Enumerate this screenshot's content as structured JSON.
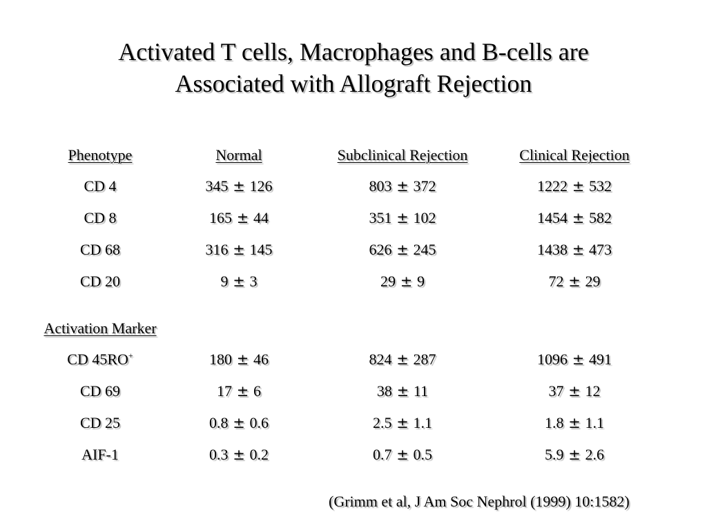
{
  "title": {
    "line1": "Activated T cells, Macrophages and B-cells are",
    "line2": "Associated with Allograft Rejection"
  },
  "table": {
    "headers": [
      "Phenotype",
      "Normal",
      "Subclinical Rejection",
      "Clinical Rejection"
    ],
    "phenotype_rows": [
      {
        "label": "CD 4",
        "normal": [
          "345",
          "126"
        ],
        "subclinical": [
          "803",
          "372"
        ],
        "clinical": [
          "1222",
          "532"
        ]
      },
      {
        "label": "CD 8",
        "normal": [
          "165",
          "44"
        ],
        "subclinical": [
          "351",
          "102"
        ],
        "clinical": [
          "1454",
          "582"
        ]
      },
      {
        "label": "CD 68",
        "normal": [
          "316",
          "145"
        ],
        "subclinical": [
          "626",
          "245"
        ],
        "clinical": [
          "1438",
          "473"
        ]
      },
      {
        "label": "CD 20",
        "normal": [
          "9",
          "3"
        ],
        "subclinical": [
          "29",
          "9"
        ],
        "clinical": [
          "72",
          "29"
        ]
      }
    ],
    "section2_header": "Activation Marker",
    "marker_rows": [
      {
        "label": "CD 45RO",
        "sup": "+",
        "normal": [
          "180",
          "46"
        ],
        "subclinical": [
          "824",
          "287"
        ],
        "clinical": [
          "1096",
          "491"
        ]
      },
      {
        "label": "CD 69",
        "sup": "",
        "normal": [
          "17",
          "6"
        ],
        "subclinical": [
          "38",
          "11"
        ],
        "clinical": [
          "37",
          "12"
        ]
      },
      {
        "label": "CD 25",
        "sup": "",
        "normal": [
          "0.8",
          "0.6"
        ],
        "subclinical": [
          "2.5",
          "1.1"
        ],
        "clinical": [
          "1.8",
          "1.1"
        ]
      },
      {
        "label": "AIF-1",
        "sup": "",
        "normal": [
          "0.3",
          "0.2"
        ],
        "subclinical": [
          "0.7",
          "0.5"
        ],
        "clinical": [
          "5.9",
          "2.6"
        ]
      }
    ],
    "pm_symbol": "±"
  },
  "citation": "(Grimm et al, J Am Soc Nephrol (1999) 10:1582)"
}
